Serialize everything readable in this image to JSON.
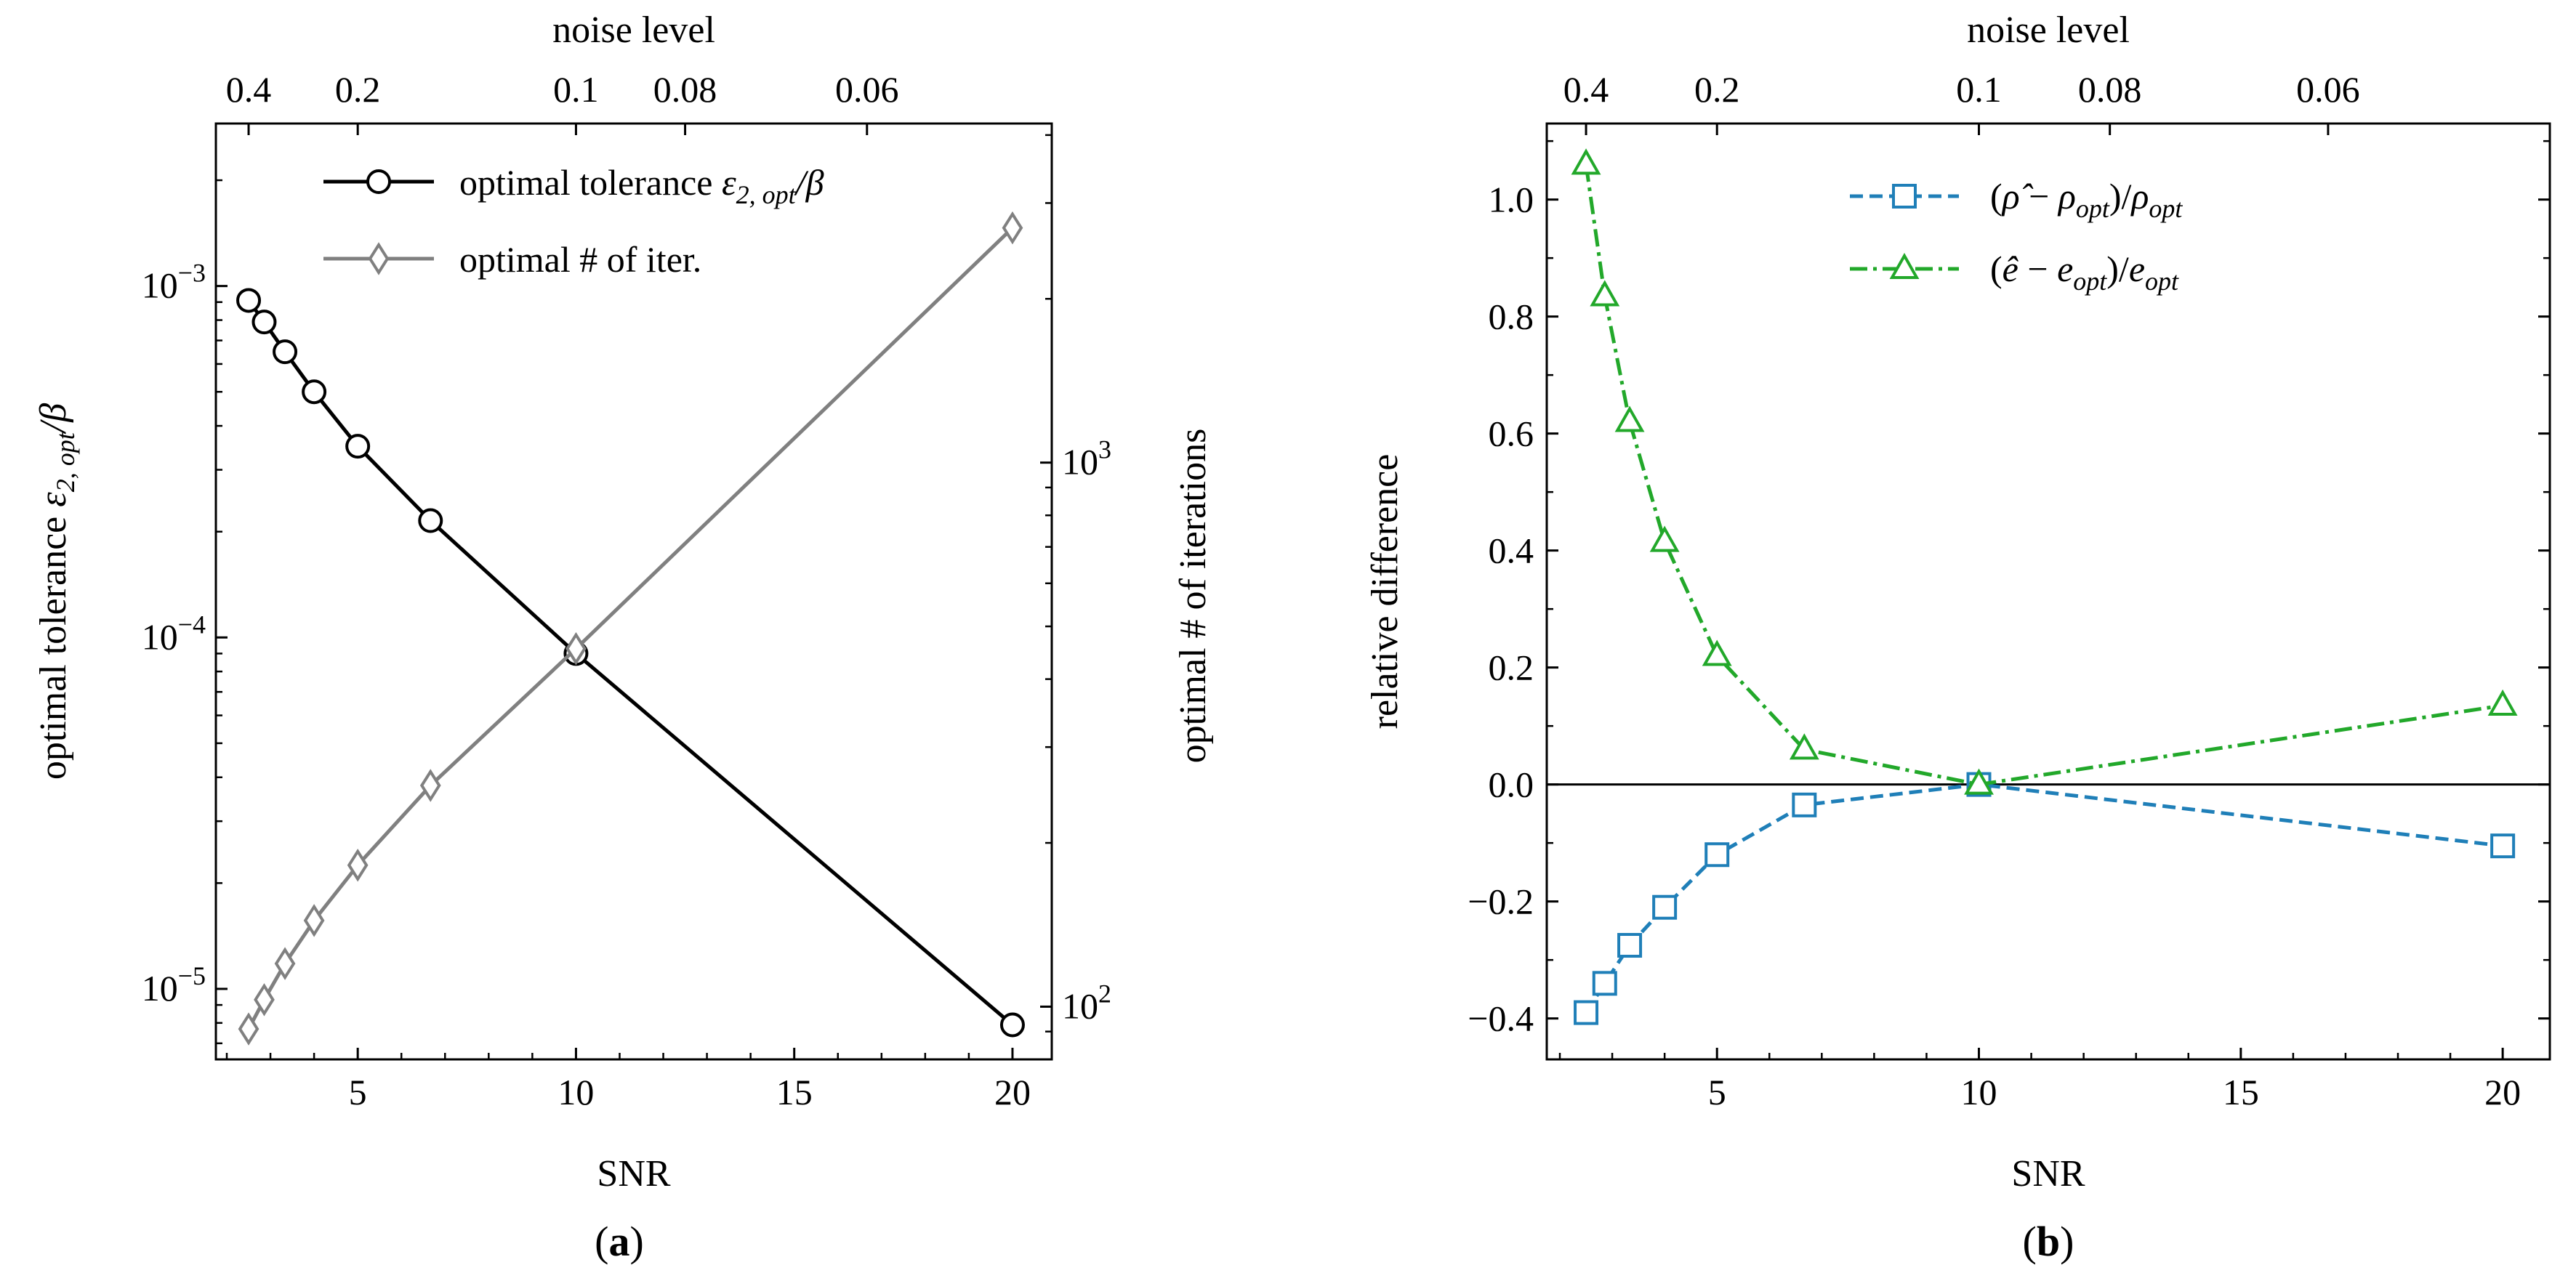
{
  "chart_data": [
    {
      "id": "a",
      "type": "line",
      "caption": "(a)",
      "xlabel": "SNR",
      "xlim": [
        1.75,
        20.9
      ],
      "xticks": [
        5,
        10,
        15,
        20
      ],
      "top_axis": {
        "label": "noise level",
        "ticks": [
          0.4,
          0.2,
          0.1,
          0.08,
          0.06
        ]
      },
      "ylabel_left": "optimal tolerance ε2,opt/β",
      "ylim_left": [
        6.3e-06,
        0.0029
      ],
      "yscale_left": "log",
      "ylabel_right": "optimal # of iterations",
      "ylim_right": [
        80,
        4200
      ],
      "yscale_right": "log",
      "series": [
        {
          "name": "optimal tolerance ε2,opt/β",
          "axis": "left",
          "color": "#000000",
          "marker": "circle",
          "x": [
            2.5,
            2.857,
            3.333,
            4,
            5,
            6.667,
            10,
            20
          ],
          "y": [
            0.00091,
            0.00079,
            0.00065,
            0.0005,
            0.00035,
            0.000215,
            9e-05,
            7.9e-06
          ]
        },
        {
          "name": "optimal # of iter.",
          "axis": "right",
          "color": "#808080",
          "marker": "diamond",
          "x": [
            2.5,
            2.857,
            3.333,
            4,
            5,
            6.667,
            10,
            20
          ],
          "y": [
            91,
            103,
            120,
            144,
            182,
            255,
            455,
            2700
          ]
        }
      ]
    },
    {
      "id": "b",
      "type": "line",
      "caption": "(b)",
      "xlabel": "SNR",
      "ylabel": "relative difference",
      "xlim": [
        1.75,
        20.9
      ],
      "xticks": [
        5,
        10,
        15,
        20
      ],
      "ylim": [
        -0.47,
        1.13
      ],
      "yticks": [
        -0.4,
        -0.2,
        0.0,
        0.2,
        0.4,
        0.6,
        0.8,
        1.0
      ],
      "top_axis": {
        "label": "noise level",
        "ticks": [
          0.4,
          0.2,
          0.1,
          0.08,
          0.06
        ]
      },
      "zero_line": true,
      "series": [
        {
          "name": "(ρ̂ − ρopt)/ρopt",
          "color": "#1f7fb8",
          "marker": "square",
          "linestyle": "dashed",
          "x": [
            2.5,
            2.857,
            3.333,
            4,
            5,
            6.667,
            10,
            20
          ],
          "y": [
            -0.39,
            -0.34,
            -0.275,
            -0.21,
            -0.12,
            -0.035,
            0.0,
            -0.105
          ]
        },
        {
          "name": "(ê − eopt)/eopt",
          "color": "#22a82a",
          "marker": "triangle",
          "linestyle": "dashdot",
          "x": [
            2.5,
            2.857,
            3.333,
            4,
            5,
            6.667,
            10,
            20
          ],
          "y": [
            1.06,
            0.835,
            0.62,
            0.415,
            0.22,
            0.06,
            0.0,
            0.135
          ]
        }
      ]
    }
  ]
}
